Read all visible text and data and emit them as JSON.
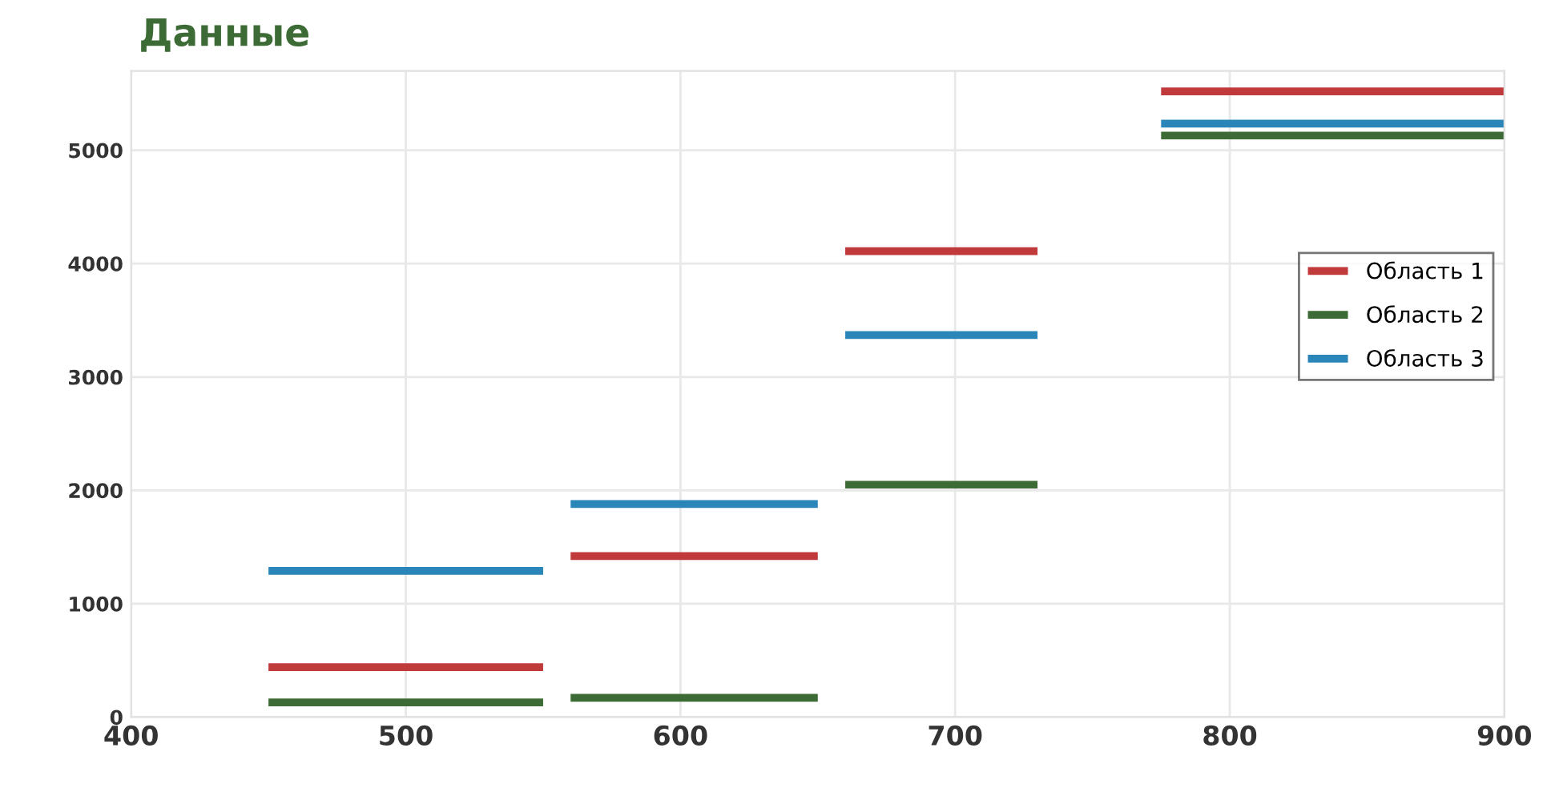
{
  "chart_data": {
    "type": "line",
    "title": "Данные",
    "xlim": [
      400,
      900
    ],
    "xticks": [
      400,
      500,
      600,
      700,
      800,
      900
    ],
    "ylim": [
      0,
      5700
    ],
    "yticks": [
      0,
      1000,
      2000,
      3000,
      4000,
      5000
    ],
    "grid": true,
    "legend": "right",
    "marker": "none",
    "line_style": "solid",
    "series": [
      {
        "name": "Область 1",
        "color": "#c0393b",
        "x": [
          450,
          550,
          555,
          560,
          650,
          655,
          660,
          730,
          752,
          775,
          900
        ],
        "values": [
          440,
          440,
          null,
          1420,
          1420,
          null,
          4110,
          4110,
          null,
          5520,
          5520
        ]
      },
      {
        "name": "Область 2",
        "color": "#3d6b35",
        "x": [
          450,
          550,
          555,
          560,
          650,
          655,
          660,
          730,
          752,
          775,
          900
        ],
        "values": [
          130,
          130,
          null,
          170,
          170,
          null,
          2050,
          2050,
          null,
          5130,
          5130
        ]
      },
      {
        "name": "Область 3",
        "color": "#2a86b8",
        "x": [
          450,
          550,
          555,
          560,
          650,
          655,
          660,
          730,
          752,
          775,
          900
        ],
        "values": [
          1290,
          1290,
          null,
          1880,
          1880,
          null,
          3370,
          3370,
          null,
          5235,
          5235
        ]
      }
    ]
  }
}
